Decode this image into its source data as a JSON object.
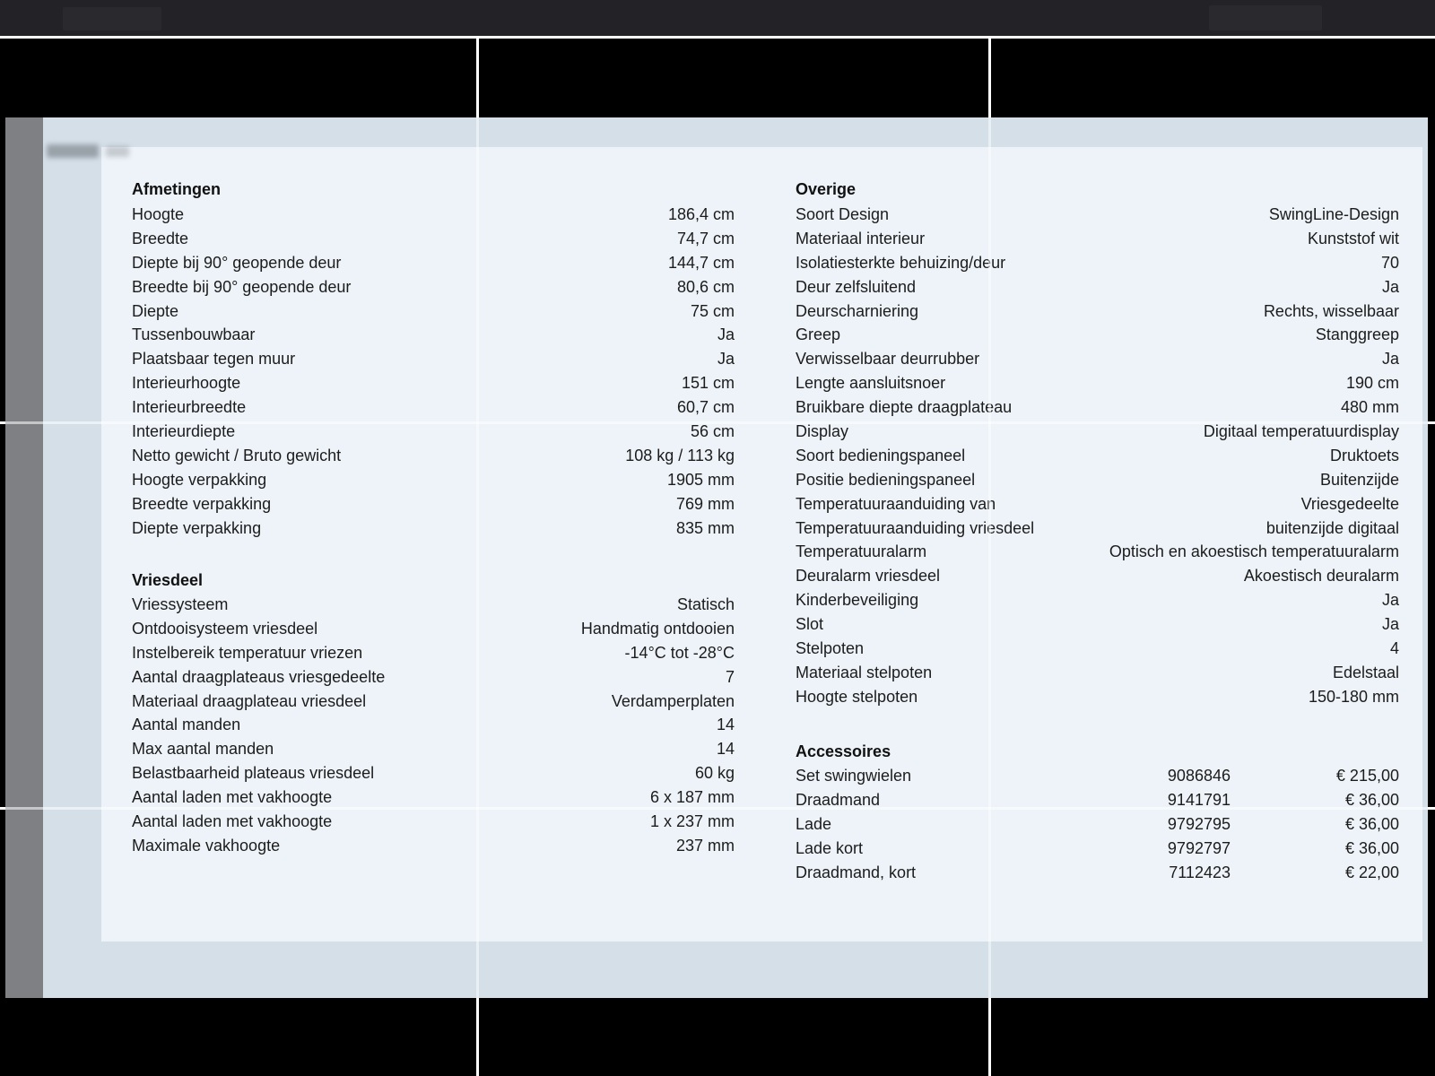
{
  "palette": {
    "viewer_background": "#000000",
    "topbar": "#232327",
    "grid_line": "#ffffff",
    "page_band": "#d5dfe8",
    "sheet_panel": "#edf3f8",
    "left_margin_strip": "#7e8084",
    "text": "#1c1c1c"
  },
  "sections": {
    "afmetingen": {
      "title": "Afmetingen",
      "rows": [
        {
          "label": "Hoogte",
          "value": "186,4 cm"
        },
        {
          "label": "Breedte",
          "value": "74,7 cm"
        },
        {
          "label": "Diepte bij 90° geopende deur",
          "value": "144,7 cm"
        },
        {
          "label": "Breedte bij 90° geopende deur",
          "value": "80,6 cm"
        },
        {
          "label": "Diepte",
          "value": "75 cm"
        },
        {
          "label": "Tussenbouwbaar",
          "value": "Ja"
        },
        {
          "label": "Plaatsbaar tegen muur",
          "value": "Ja"
        },
        {
          "label": "Interieurhoogte",
          "value": "151 cm"
        },
        {
          "label": "Interieurbreedte",
          "value": "60,7 cm"
        },
        {
          "label": "Interieurdiepte",
          "value": "56 cm"
        },
        {
          "label": "Netto gewicht / Bruto gewicht",
          "value": "108 kg / 113 kg"
        },
        {
          "label": "Hoogte verpakking",
          "value": "1905 mm"
        },
        {
          "label": "Breedte verpakking",
          "value": "769 mm"
        },
        {
          "label": "Diepte verpakking",
          "value": "835 mm"
        }
      ]
    },
    "vriesdeel": {
      "title": "Vriesdeel",
      "rows": [
        {
          "label": "Vriessysteem",
          "value": "Statisch"
        },
        {
          "label": "Ontdooisysteem vriesdeel",
          "value": "Handmatig ontdooien"
        },
        {
          "label": "Instelbereik temperatuur vriezen",
          "value": "-14°C tot -28°C"
        },
        {
          "label": "Aantal draagplateaus vriesgedeelte",
          "value": "7"
        },
        {
          "label": "Materiaal draagplateau vriesdeel",
          "value": "Verdamperplaten"
        },
        {
          "label": "Aantal manden",
          "value": "14"
        },
        {
          "label": "Max aantal manden",
          "value": "14"
        },
        {
          "label": "Belastbaarheid plateaus vriesdeel",
          "value": "60 kg"
        },
        {
          "label": "Aantal laden met vakhoogte",
          "value": "6 x 187 mm"
        },
        {
          "label": "Aantal laden met vakhoogte",
          "value": "1 x 237 mm"
        },
        {
          "label": "Maximale vakhoogte",
          "value": "237 mm"
        }
      ]
    },
    "overige": {
      "title": "Overige",
      "rows": [
        {
          "label": "Soort Design",
          "value": "SwingLine-Design"
        },
        {
          "label": "Materiaal interieur",
          "value": "Kunststof wit"
        },
        {
          "label": "Isolatiesterkte behuizing/deur",
          "value": "70"
        },
        {
          "label": "Deur zelfsluitend",
          "value": "Ja"
        },
        {
          "label": "Deurscharniering",
          "value": "Rechts, wisselbaar"
        },
        {
          "label": "Greep",
          "value": "Stanggreep"
        },
        {
          "label": "Verwisselbaar deurrubber",
          "value": "Ja"
        },
        {
          "label": "Lengte aansluitsnoer",
          "value": "190 cm"
        },
        {
          "label": "Bruikbare diepte draagplateau",
          "value": "480 mm"
        },
        {
          "label": "Display",
          "value": "Digitaal temperatuurdisplay"
        },
        {
          "label": "Soort bedieningspaneel",
          "value": "Druktoets"
        },
        {
          "label": "Positie bedieningspaneel",
          "value": "Buitenzijde"
        },
        {
          "label": "Temperatuuraanduiding van",
          "value": "Vriesgedeelte"
        },
        {
          "label": "Temperatuuraanduiding vriesdeel",
          "value": "buitenzijde digitaal"
        },
        {
          "label": "Temperatuuralarm",
          "value": "Optisch en akoestisch temperatuuralarm"
        },
        {
          "label": "Deuralarm vriesdeel",
          "value": "Akoestisch deuralarm"
        },
        {
          "label": "Kinderbeveiliging",
          "value": "Ja"
        },
        {
          "label": "Slot",
          "value": "Ja"
        },
        {
          "label": "Stelpoten",
          "value": "4"
        },
        {
          "label": "Materiaal stelpoten",
          "value": "Edelstaal"
        },
        {
          "label": "Hoogte stelpoten",
          "value": "150-180 mm"
        }
      ]
    },
    "accessoires": {
      "title": "Accessoires",
      "rows": [
        {
          "label": "Set swingwielen",
          "number": "9086846",
          "price": "€ 215,00"
        },
        {
          "label": "Draadmand",
          "number": "9141791",
          "price": "€ 36,00"
        },
        {
          "label": "Lade",
          "number": "9792795",
          "price": "€ 36,00"
        },
        {
          "label": "Lade kort",
          "number": "9792797",
          "price": "€ 36,00"
        },
        {
          "label": "Draadmand, kort",
          "number": "7112423",
          "price": "€ 22,00"
        }
      ]
    }
  }
}
